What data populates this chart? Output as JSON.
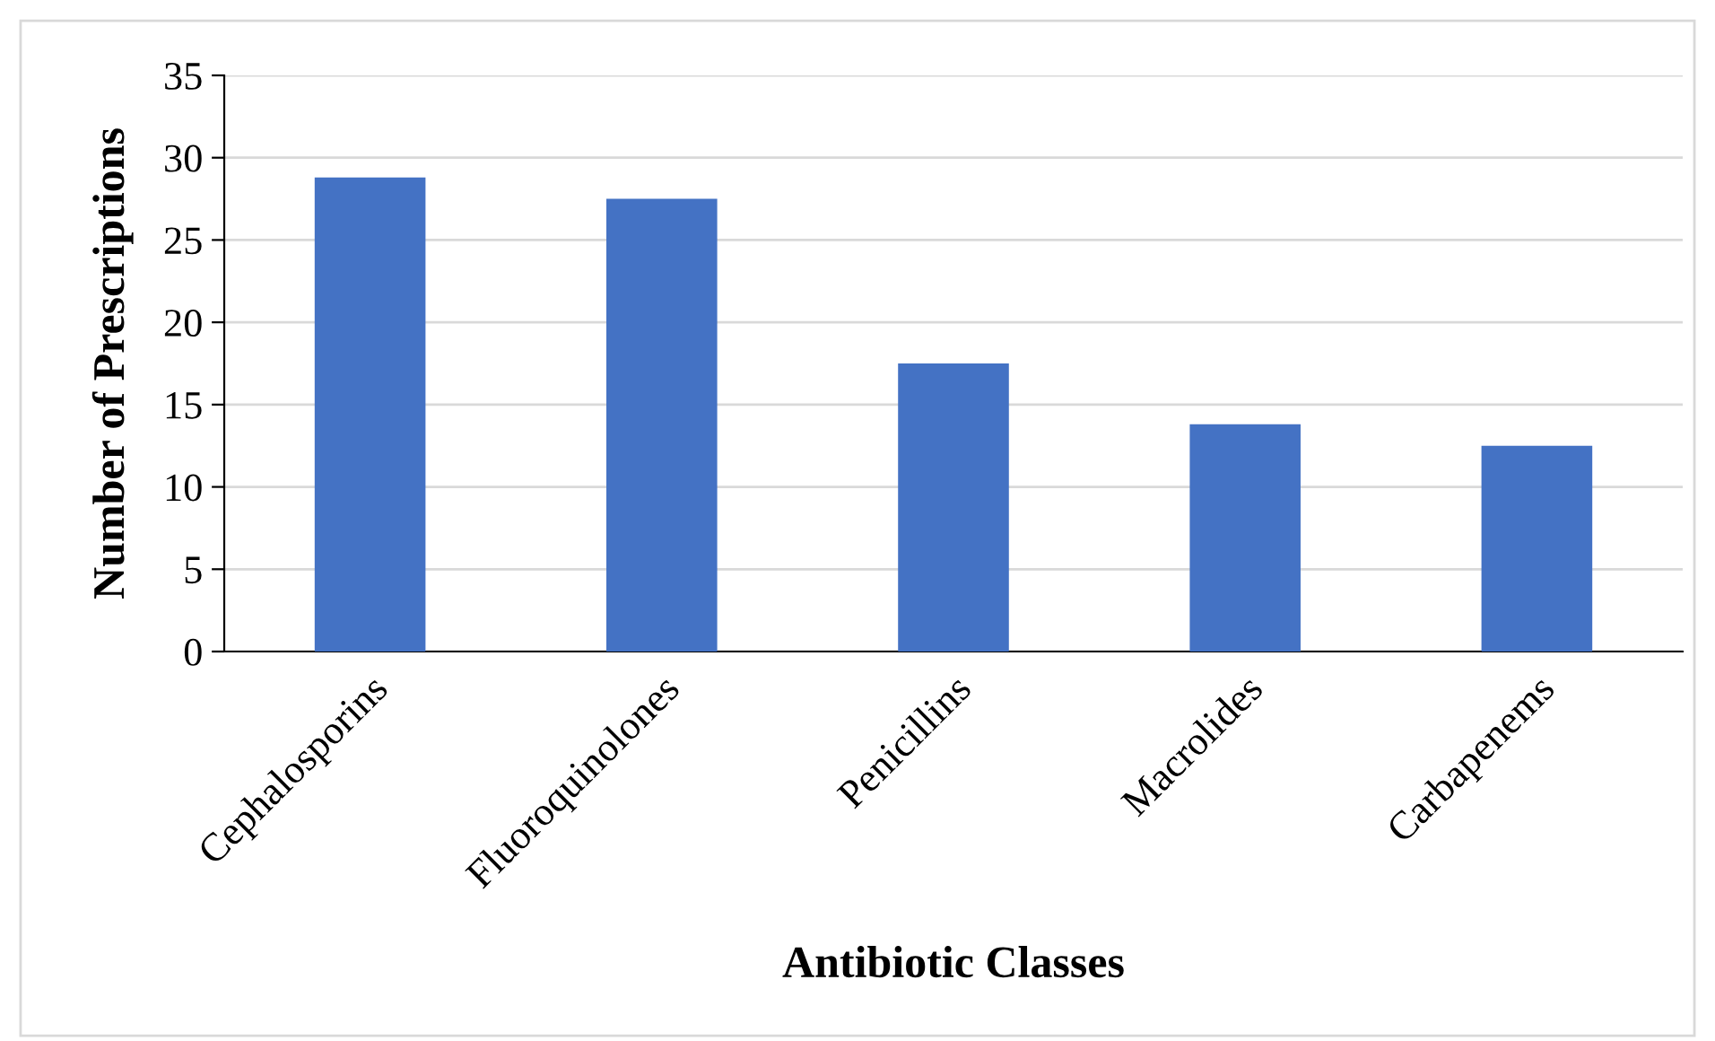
{
  "chart_data": {
    "type": "bar",
    "xlabel": "Antibiotic Classes",
    "ylabel": "Number of Prescriptions",
    "categories": [
      "Cephalosporins",
      "Fluoroquinolones",
      "Penicillins",
      "Macrolides",
      "Carbapenems"
    ],
    "values": [
      28.8,
      27.5,
      17.5,
      13.8,
      12.5
    ],
    "color": "#4472c4",
    "ylim": [
      0,
      35
    ],
    "yticks": [
      0,
      5,
      10,
      15,
      20,
      25,
      30,
      35
    ],
    "grid": "y"
  }
}
